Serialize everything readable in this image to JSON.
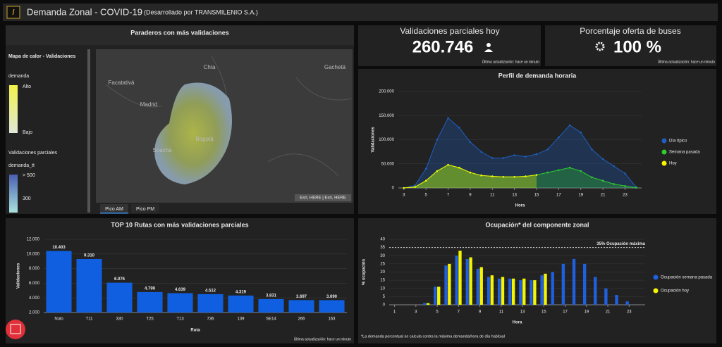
{
  "header": {
    "title": "Demanda Zonal - COVID-19",
    "subtitle": "(Desarrollado por TRANSMILENIO S.A.)"
  },
  "map": {
    "title": "Paraderos con más validaciones",
    "legend_title": "Mapa de calor - Validaciones",
    "heat_field": "demanda",
    "high": "Alto",
    "low": "Bajo",
    "points_title": "Validaciones parciales",
    "points_field": "demanda_tt",
    "points_high": "> 500",
    "points_mid": "300",
    "places": [
      "Chía",
      "Gachetá",
      "Facatativá",
      "Madrid",
      "Bogotá",
      "Soacha"
    ],
    "attribution": "Esri, HERE | Esri, HERE",
    "tabs": [
      "Pico AM",
      "Pico PM"
    ]
  },
  "indicators": [
    {
      "title": "Validaciones parciales hoy",
      "value": "260.746",
      "footer": "Última actualización: hace un minuto"
    },
    {
      "title": "Porcentaje oferta de buses",
      "value": "100 %",
      "footer": "Última actualización: hace un minuto"
    }
  ],
  "chart_data": [
    {
      "type": "line",
      "title": "Perfil de demanda horaria",
      "x_label": "Hora",
      "y_label": "Validaciones",
      "x": [
        3,
        4,
        5,
        6,
        7,
        8,
        9,
        10,
        11,
        12,
        13,
        14,
        15,
        16,
        17,
        18,
        19,
        20,
        21,
        22,
        23,
        24
      ],
      "xlim": [
        2.5,
        24.5
      ],
      "xticks": [
        3,
        5,
        7,
        9,
        11,
        13,
        15,
        17,
        19,
        21,
        23
      ],
      "ylim": [
        0,
        200000
      ],
      "yticks": [
        0,
        {
          "value": 50000,
          "label": "50.000"
        },
        {
          "value": 100000,
          "label": "100.000"
        },
        {
          "value": 150000,
          "label": "150.000"
        },
        {
          "value": 200000,
          "label": "200.000"
        }
      ],
      "grid": true,
      "series": [
        {
          "name": "Día típico",
          "color": "#1f5fbf",
          "values": [
            0,
            5000,
            40000,
            100000,
            145000,
            125000,
            95000,
            75000,
            62000,
            62000,
            68000,
            65000,
            70000,
            80000,
            105000,
            130000,
            115000,
            80000,
            60000,
            45000,
            30000,
            2000
          ]
        },
        {
          "name": "Semana pasada",
          "color": "#2ecc2e",
          "values": [
            0,
            2000,
            15000,
            35000,
            48000,
            42000,
            32000,
            26000,
            24000,
            23000,
            23000,
            24000,
            27000,
            32000,
            37000,
            42000,
            35000,
            22000,
            15000,
            8000,
            4000,
            500
          ]
        },
        {
          "name": "Hoy",
          "color": "#f5f500",
          "values": [
            0,
            2000,
            15000,
            35000,
            48000,
            42000,
            32000,
            26000,
            24000,
            23000,
            23000,
            24000,
            27000,
            null,
            null,
            null,
            null,
            null,
            null,
            null,
            null,
            null
          ]
        }
      ]
    },
    {
      "type": "bar",
      "title": "TOP 10 Rutas con más validaciones parciales",
      "x_label": "Ruta",
      "y_label": "Validaciones",
      "categories": [
        "Nulo",
        "T11",
        "330",
        "T25",
        "T13",
        "736",
        "139",
        "SE14",
        "266",
        "163"
      ],
      "values": [
        10403,
        9310,
        6076,
        4799,
        4639,
        4512,
        4319,
        3831,
        3697,
        3690
      ],
      "value_labels": [
        "10.403",
        "9.310",
        "6.076",
        "4.799",
        "4.639",
        "4.512",
        "4.319",
        "3.831",
        "3.697",
        "3.690"
      ],
      "color": "#0f5fe0",
      "ylim": [
        2000,
        12000
      ],
      "yticks": [
        {
          "value": 2000,
          "label": "2.000"
        },
        {
          "value": 4000,
          "label": "4.000"
        },
        {
          "value": 6000,
          "label": "6.000"
        },
        {
          "value": 8000,
          "label": "8.000"
        },
        {
          "value": 10000,
          "label": "10.000"
        },
        {
          "value": 12000,
          "label": "12.000"
        }
      ],
      "grid": true,
      "footnote": "Última actualización: hace un minuto"
    },
    {
      "type": "bar",
      "title": "Ocupación* del componente zonal",
      "x_label": "Hora",
      "y_label": "% ocupación",
      "x": [
        1,
        2,
        3,
        4,
        5,
        6,
        7,
        8,
        9,
        10,
        11,
        12,
        13,
        14,
        15,
        16,
        17,
        18,
        19,
        20,
        21,
        22,
        23,
        24
      ],
      "xlim": [
        0.5,
        24.5
      ],
      "xticks": [
        1,
        3,
        5,
        7,
        9,
        11,
        13,
        15,
        17,
        19,
        21,
        23
      ],
      "ylim": [
        0,
        40
      ],
      "yticks": [
        0,
        5,
        10,
        15,
        20,
        25,
        30,
        35,
        40
      ],
      "grid": true,
      "reference": {
        "value": 35,
        "label": "35% Ocupación máxima"
      },
      "note": "*La demanda porcentual se calcula contra la máxima demanda/hora de día habitual",
      "series": [
        {
          "name": "Ocupación semana pasada",
          "color": "#1f5fe0",
          "values": [
            0,
            0,
            0,
            1,
            11,
            24,
            30,
            28,
            22,
            17,
            16,
            16,
            15,
            15,
            18,
            20,
            25,
            28,
            25,
            17,
            10,
            6,
            2,
            0
          ]
        },
        {
          "name": "Ocupación hoy",
          "color": "#f5f500",
          "values": [
            0,
            0,
            0,
            1,
            11,
            25,
            33,
            29,
            23,
            18,
            17,
            16,
            16,
            15,
            19,
            null,
            null,
            null,
            null,
            null,
            null,
            null,
            null,
            null
          ]
        }
      ]
    }
  ]
}
